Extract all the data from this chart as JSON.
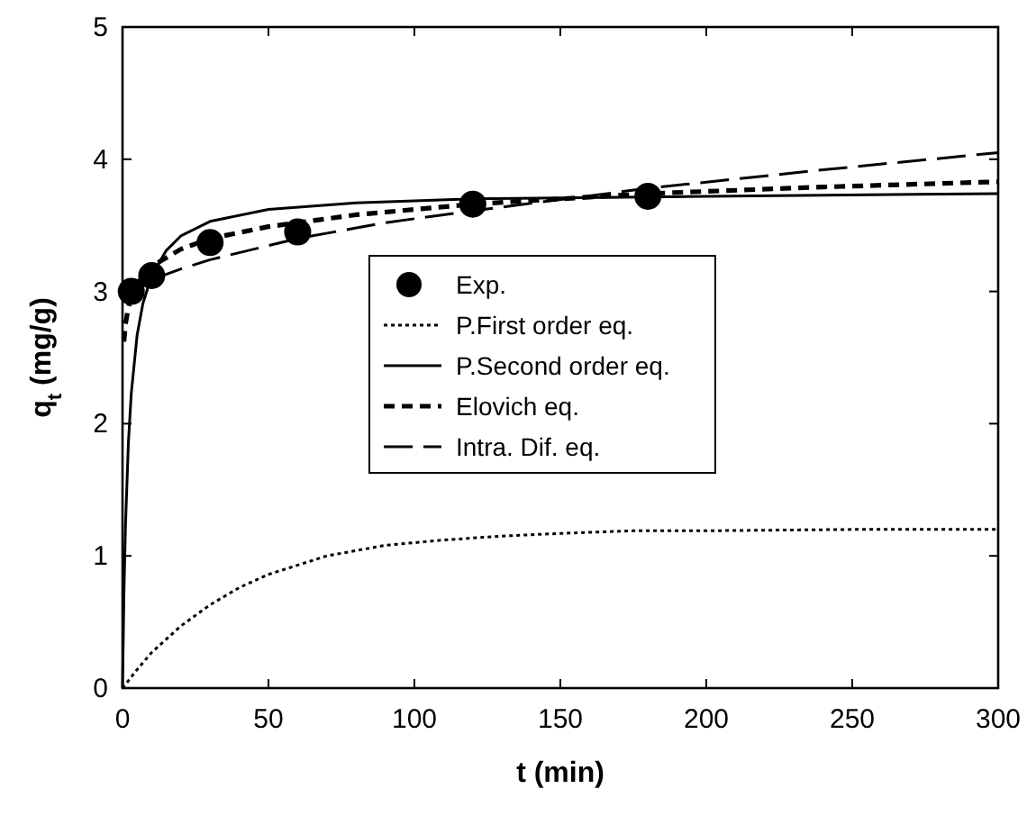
{
  "chart_data": {
    "type": "line",
    "xlabel": "t (min)",
    "ylabel": "q$_{t}$ (mg/g)",
    "xlim": [
      0,
      300
    ],
    "ylim": [
      0,
      5
    ],
    "xticks": [
      0,
      50,
      100,
      150,
      200,
      250,
      300
    ],
    "yticks": [
      0,
      1,
      2,
      3,
      4,
      5
    ],
    "grid": false,
    "legend": "right",
    "series": [
      {
        "name": "Exp.",
        "type": "scatter",
        "marker": "circle",
        "color": "#000000",
        "x": [
          3,
          10,
          30,
          60,
          120,
          180
        ],
        "values": [
          3.0,
          3.12,
          3.37,
          3.45,
          3.66,
          3.72
        ]
      },
      {
        "name": "P.First order eq.",
        "line_style": "dotted",
        "color": "#000000",
        "x": [
          0,
          5,
          10,
          20,
          30,
          40,
          50,
          70,
          90,
          110,
          130,
          150,
          175,
          200,
          250,
          300
        ],
        "values": [
          0,
          0.14,
          0.27,
          0.47,
          0.63,
          0.76,
          0.86,
          1.0,
          1.08,
          1.12,
          1.15,
          1.17,
          1.19,
          1.19,
          1.2,
          1.2
        ]
      },
      {
        "name": "P.Second order eq.",
        "line_style": "solid",
        "color": "#000000",
        "x": [
          0,
          0.5,
          1,
          2,
          3,
          5,
          7,
          10,
          15,
          20,
          30,
          50,
          80,
          120,
          200,
          300
        ],
        "values": [
          0,
          0.73,
          1.22,
          1.85,
          2.23,
          2.67,
          2.91,
          3.12,
          3.31,
          3.42,
          3.53,
          3.62,
          3.67,
          3.7,
          3.72,
          3.74
        ]
      },
      {
        "name": "Elovich eq.",
        "line_style": "dashed",
        "color": "#000000",
        "x": [
          0.5,
          1,
          2,
          3,
          5,
          10,
          20,
          30,
          50,
          80,
          120,
          180,
          240,
          300
        ],
        "values": [
          2.62,
          2.75,
          2.88,
          2.96,
          3.06,
          3.19,
          3.32,
          3.4,
          3.49,
          3.58,
          3.66,
          3.74,
          3.79,
          3.83
        ]
      },
      {
        "name": "Intra. Dif. eq.",
        "line_style": "dashed",
        "color": "#000000",
        "x": [
          0.5,
          1,
          3,
          5,
          10,
          20,
          30,
          60,
          90,
          120,
          180,
          240,
          300
        ],
        "values": [
          2.92,
          2.94,
          2.99,
          3.02,
          3.09,
          3.17,
          3.24,
          3.4,
          3.52,
          3.61,
          3.78,
          3.92,
          4.05
        ]
      }
    ]
  }
}
